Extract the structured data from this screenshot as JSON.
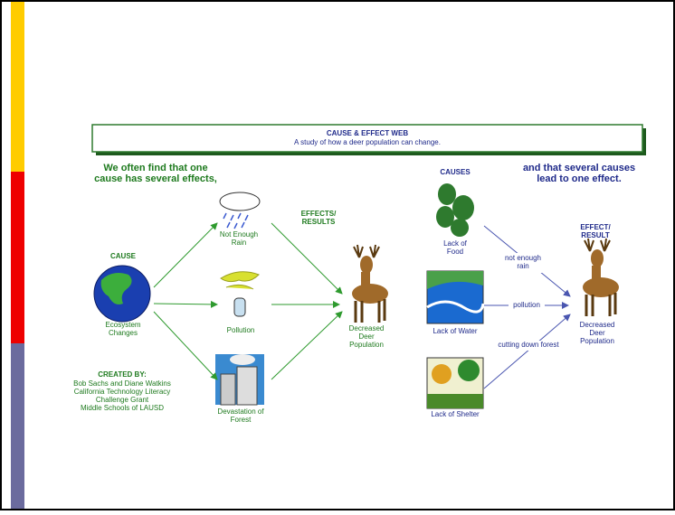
{
  "header": {
    "title": "CAUSE & EFFECT WEB",
    "subtitle": "A study of how a deer population can change."
  },
  "left": {
    "intro": [
      "We often find that one",
      "cause has several effects,"
    ],
    "cause_heading": "CAUSE",
    "cause": [
      "Ecosystem",
      "Changes"
    ],
    "effects_heading": [
      "EFFECTS/",
      "RESULTS"
    ],
    "effects": [
      [
        "Not Enough",
        "Rain"
      ],
      [
        "Pollution"
      ],
      [
        "Devastation of",
        "Forest"
      ]
    ],
    "result": [
      "Decreased",
      "Deer",
      "Population"
    ],
    "credits": [
      "CREATED BY:",
      "Bob Sachs and Diane Watkins",
      "California Technology Literacy",
      "Challenge Grant",
      "Middle Schools of LAUSD"
    ]
  },
  "right": {
    "intro": [
      "and that several causes",
      "lead to one effect."
    ],
    "causes_heading": "CAUSES",
    "causes": [
      [
        "Lack of",
        "Food"
      ],
      [
        "Lack of Water"
      ],
      [
        "Lack of Shelter"
      ]
    ],
    "links": [
      [
        "not enough",
        "rain"
      ],
      [
        "pollution"
      ],
      [
        "cutting down forest"
      ]
    ],
    "effect_heading": [
      "EFFECT/",
      "RESULT"
    ],
    "effect": [
      "Decreased",
      "Deer",
      "Population"
    ]
  }
}
